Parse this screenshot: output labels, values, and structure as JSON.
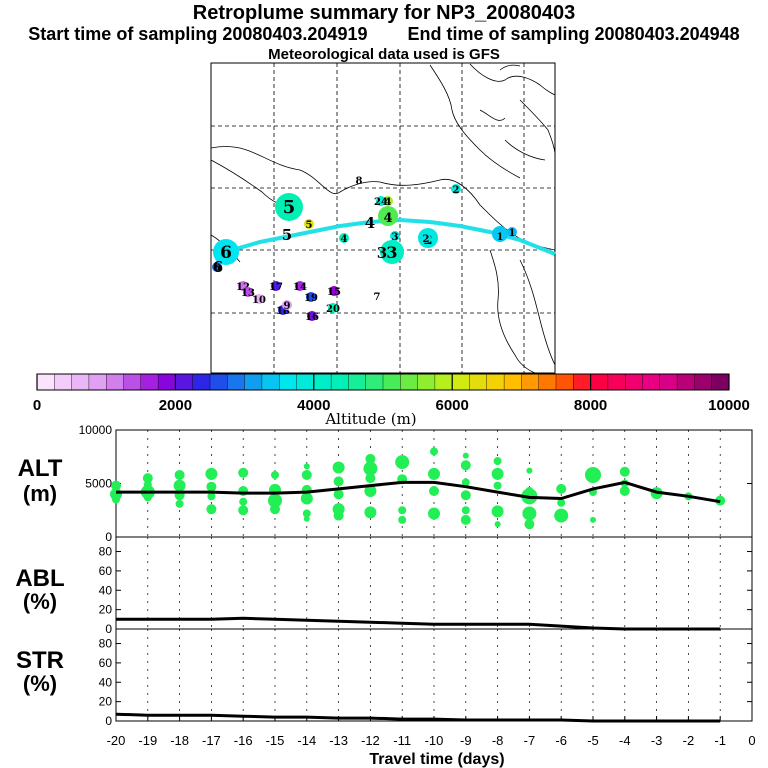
{
  "title": {
    "line1": "Retroplume summary for NP3_20080403",
    "line2_start": "Start time of sampling 20080403.204919",
    "line2_end": "End time of sampling 20080403.204948",
    "line3": "Meteorological data used is GFS"
  },
  "colors": {
    "trajectory": "#22e0e8",
    "altitude_points": "#22ee55",
    "axis": "#000000",
    "grid": "#000000"
  },
  "chart_data": [
    {
      "type": "map",
      "name": "trajectory-map",
      "description_labels": {
        "plume_center_labels": [
          "1",
          "2",
          "3",
          "4",
          "5",
          "6"
        ],
        "cluster_labels": [
          "1",
          "2",
          "3",
          "4",
          "5",
          "6",
          "7",
          "8",
          "9",
          "10",
          "12",
          "13",
          "14",
          "15",
          "16",
          "17",
          "18",
          "19",
          "20",
          "24"
        ]
      },
      "plume_centers": [
        {
          "label": "1",
          "day": -1,
          "altitude": 3400
        },
        {
          "label": "2",
          "day": -2,
          "altitude": 3800
        },
        {
          "label": "3",
          "day": -3,
          "altitude": 4200
        },
        {
          "label": "4",
          "day": -4,
          "altitude": 5200
        },
        {
          "label": "5",
          "day": -5,
          "altitude": 4400
        },
        {
          "label": "6",
          "day": -6,
          "altitude": 3600
        }
      ],
      "clusters": [
        {
          "label": "1",
          "altitude": 3300
        },
        {
          "label": "2",
          "altitude": 3900
        },
        {
          "label": "2",
          "altitude": 3700
        },
        {
          "label": "3",
          "altitude": 3800
        },
        {
          "label": "4",
          "altitude": 4300
        },
        {
          "label": "4",
          "altitude": 5800
        },
        {
          "label": "5",
          "altitude": 6300
        },
        {
          "label": "6",
          "altitude": 2800
        },
        {
          "label": "7",
          "altitude": 0
        },
        {
          "label": "8",
          "altitude": 0
        },
        {
          "label": "24",
          "altitude": 3900
        },
        {
          "label": "12",
          "altitude": 1200
        },
        {
          "label": "13",
          "altitude": 1400
        },
        {
          "label": "14",
          "altitude": 1600
        },
        {
          "label": "15",
          "altitude": 1800
        },
        {
          "label": "16",
          "altitude": 2000
        },
        {
          "label": "17",
          "altitude": 2200
        },
        {
          "label": "18",
          "altitude": 2400
        },
        {
          "label": "19",
          "altitude": 2600
        },
        {
          "label": "20",
          "altitude": 4400
        },
        {
          "label": "9",
          "altitude": 900
        },
        {
          "label": "10",
          "altitude": 700
        }
      ]
    },
    {
      "type": "colorbar",
      "name": "altitude-colorbar",
      "xlabel": "Altitude (m)",
      "range": [
        0,
        10000
      ],
      "tick_labels": [
        "0",
        "2000",
        "4000",
        "6000",
        "8000",
        "10000"
      ],
      "tick_values": [
        0,
        2000,
        4000,
        6000,
        8000,
        10000
      ],
      "n_bins": 40
    },
    {
      "type": "line",
      "name": "ALT",
      "ylabel": "ALT",
      "yunit": "(m)",
      "ylim": [
        0,
        10000
      ],
      "yticks": [
        "0",
        "5000",
        "10000"
      ],
      "ytick_values": [
        0,
        5000,
        10000
      ],
      "x": [
        -20,
        -19,
        -18,
        -17,
        -16,
        -15,
        -14,
        -13,
        -12,
        -11,
        -10,
        -9,
        -8,
        -7,
        -6,
        -5,
        -4,
        -3,
        -2,
        -1
      ],
      "values": [
        4200,
        4200,
        4200,
        4200,
        4100,
        4100,
        4200,
        4500,
        4800,
        5100,
        5100,
        4700,
        4200,
        3700,
        3600,
        4500,
        5100,
        4200,
        3800,
        3300
      ],
      "scatter": [
        [
          -20,
          4000,
          6
        ],
        [
          -20,
          4800,
          5
        ],
        [
          -20,
          3500,
          4
        ],
        [
          -19,
          5500,
          5
        ],
        [
          -19,
          4200,
          7
        ],
        [
          -19,
          3700,
          4
        ],
        [
          -19,
          4900,
          4
        ],
        [
          -18,
          5800,
          5
        ],
        [
          -18,
          4800,
          6
        ],
        [
          -18,
          3900,
          5
        ],
        [
          -18,
          3100,
          4
        ],
        [
          -17,
          5900,
          6
        ],
        [
          -17,
          4700,
          5
        ],
        [
          -17,
          3800,
          4
        ],
        [
          -17,
          2600,
          5
        ],
        [
          -16,
          6000,
          5
        ],
        [
          -16,
          4300,
          5
        ],
        [
          -16,
          3300,
          4
        ],
        [
          -16,
          2500,
          5
        ],
        [
          -15,
          5800,
          4
        ],
        [
          -15,
          4400,
          6
        ],
        [
          -15,
          3400,
          7
        ],
        [
          -15,
          2600,
          5
        ],
        [
          -14,
          6600,
          3
        ],
        [
          -14,
          5800,
          5
        ],
        [
          -14,
          4400,
          5
        ],
        [
          -14,
          3600,
          6
        ],
        [
          -14,
          2200,
          4
        ],
        [
          -14,
          1700,
          3
        ],
        [
          -13,
          6500,
          6
        ],
        [
          -13,
          5200,
          5
        ],
        [
          -13,
          4000,
          5
        ],
        [
          -13,
          2600,
          6
        ],
        [
          -13,
          2000,
          5
        ],
        [
          -12,
          7300,
          5
        ],
        [
          -12,
          6400,
          7
        ],
        [
          -12,
          5500,
          5
        ],
        [
          -12,
          4300,
          6
        ],
        [
          -12,
          2300,
          6
        ],
        [
          -11,
          7000,
          7
        ],
        [
          -11,
          5400,
          5
        ],
        [
          -11,
          2500,
          4
        ],
        [
          -11,
          1600,
          4
        ],
        [
          -10,
          8000,
          4
        ],
        [
          -10,
          5900,
          6
        ],
        [
          -10,
          4300,
          5
        ],
        [
          -10,
          2200,
          6
        ],
        [
          -9,
          7600,
          3
        ],
        [
          -9,
          6700,
          5
        ],
        [
          -9,
          5100,
          4
        ],
        [
          -9,
          3900,
          5
        ],
        [
          -9,
          2500,
          4
        ],
        [
          -9,
          1600,
          5
        ],
        [
          -8,
          7100,
          4
        ],
        [
          -8,
          5900,
          6
        ],
        [
          -8,
          4800,
          4
        ],
        [
          -8,
          2400,
          6
        ],
        [
          -8,
          1200,
          3
        ],
        [
          -7,
          6200,
          3
        ],
        [
          -7,
          4300,
          4
        ],
        [
          -7,
          3800,
          8
        ],
        [
          -7,
          2200,
          7
        ],
        [
          -7,
          1200,
          5
        ],
        [
          -6,
          4500,
          5
        ],
        [
          -6,
          3200,
          4
        ],
        [
          -6,
          2000,
          7
        ],
        [
          -5,
          5800,
          8
        ],
        [
          -5,
          4200,
          4
        ],
        [
          -5,
          1600,
          3
        ],
        [
          -4,
          6100,
          5
        ],
        [
          -4,
          5000,
          4
        ],
        [
          -4,
          4300,
          5
        ],
        [
          -3,
          4100,
          6
        ],
        [
          -2,
          3800,
          4
        ],
        [
          -1,
          3400,
          5
        ]
      ]
    },
    {
      "type": "line",
      "name": "ABL",
      "ylabel": "ABL",
      "yunit": "(%)",
      "ylim": [
        0,
        95
      ],
      "yticks": [
        "0",
        "20",
        "40",
        "60",
        "80"
      ],
      "ytick_values": [
        0,
        20,
        40,
        60,
        80
      ],
      "x": [
        -20,
        -19,
        -18,
        -17,
        -16,
        -15,
        -14,
        -13,
        -12,
        -11,
        -10,
        -9,
        -8,
        -7,
        -6,
        -5,
        -4,
        -3,
        -2,
        -1
      ],
      "values": [
        10,
        10,
        10,
        10,
        11,
        10,
        9,
        8,
        7,
        6,
        5,
        5,
        5,
        5,
        3,
        1,
        0,
        0,
        0,
        0
      ]
    },
    {
      "type": "line",
      "name": "STR",
      "ylabel": "STR",
      "yunit": "(%)",
      "ylim": [
        0,
        95
      ],
      "yticks": [
        "0",
        "20",
        "40",
        "60",
        "80"
      ],
      "ytick_values": [
        0,
        20,
        40,
        60,
        80
      ],
      "xlabel": "Travel time (days)",
      "xticks": [
        "-20",
        "-19",
        "-18",
        "-17",
        "-16",
        "-15",
        "-14",
        "-13",
        "-12",
        "-11",
        "-10",
        "-9",
        "-8",
        "-7",
        "-6",
        "-5",
        "-4",
        "-3",
        "-2",
        "-1",
        "0"
      ],
      "xtick_values": [
        -20,
        -19,
        -18,
        -17,
        -16,
        -15,
        -14,
        -13,
        -12,
        -11,
        -10,
        -9,
        -8,
        -7,
        -6,
        -5,
        -4,
        -3,
        -2,
        -1,
        0
      ],
      "x": [
        -20,
        -19,
        -18,
        -17,
        -16,
        -15,
        -14,
        -13,
        -12,
        -11,
        -10,
        -9,
        -8,
        -7,
        -6,
        -5,
        -4,
        -3,
        -2,
        -1
      ],
      "values": [
        7,
        6,
        6,
        6,
        5,
        4,
        4,
        3,
        3,
        2,
        2,
        1,
        1,
        1,
        1,
        0,
        0,
        0,
        0,
        0
      ]
    }
  ]
}
